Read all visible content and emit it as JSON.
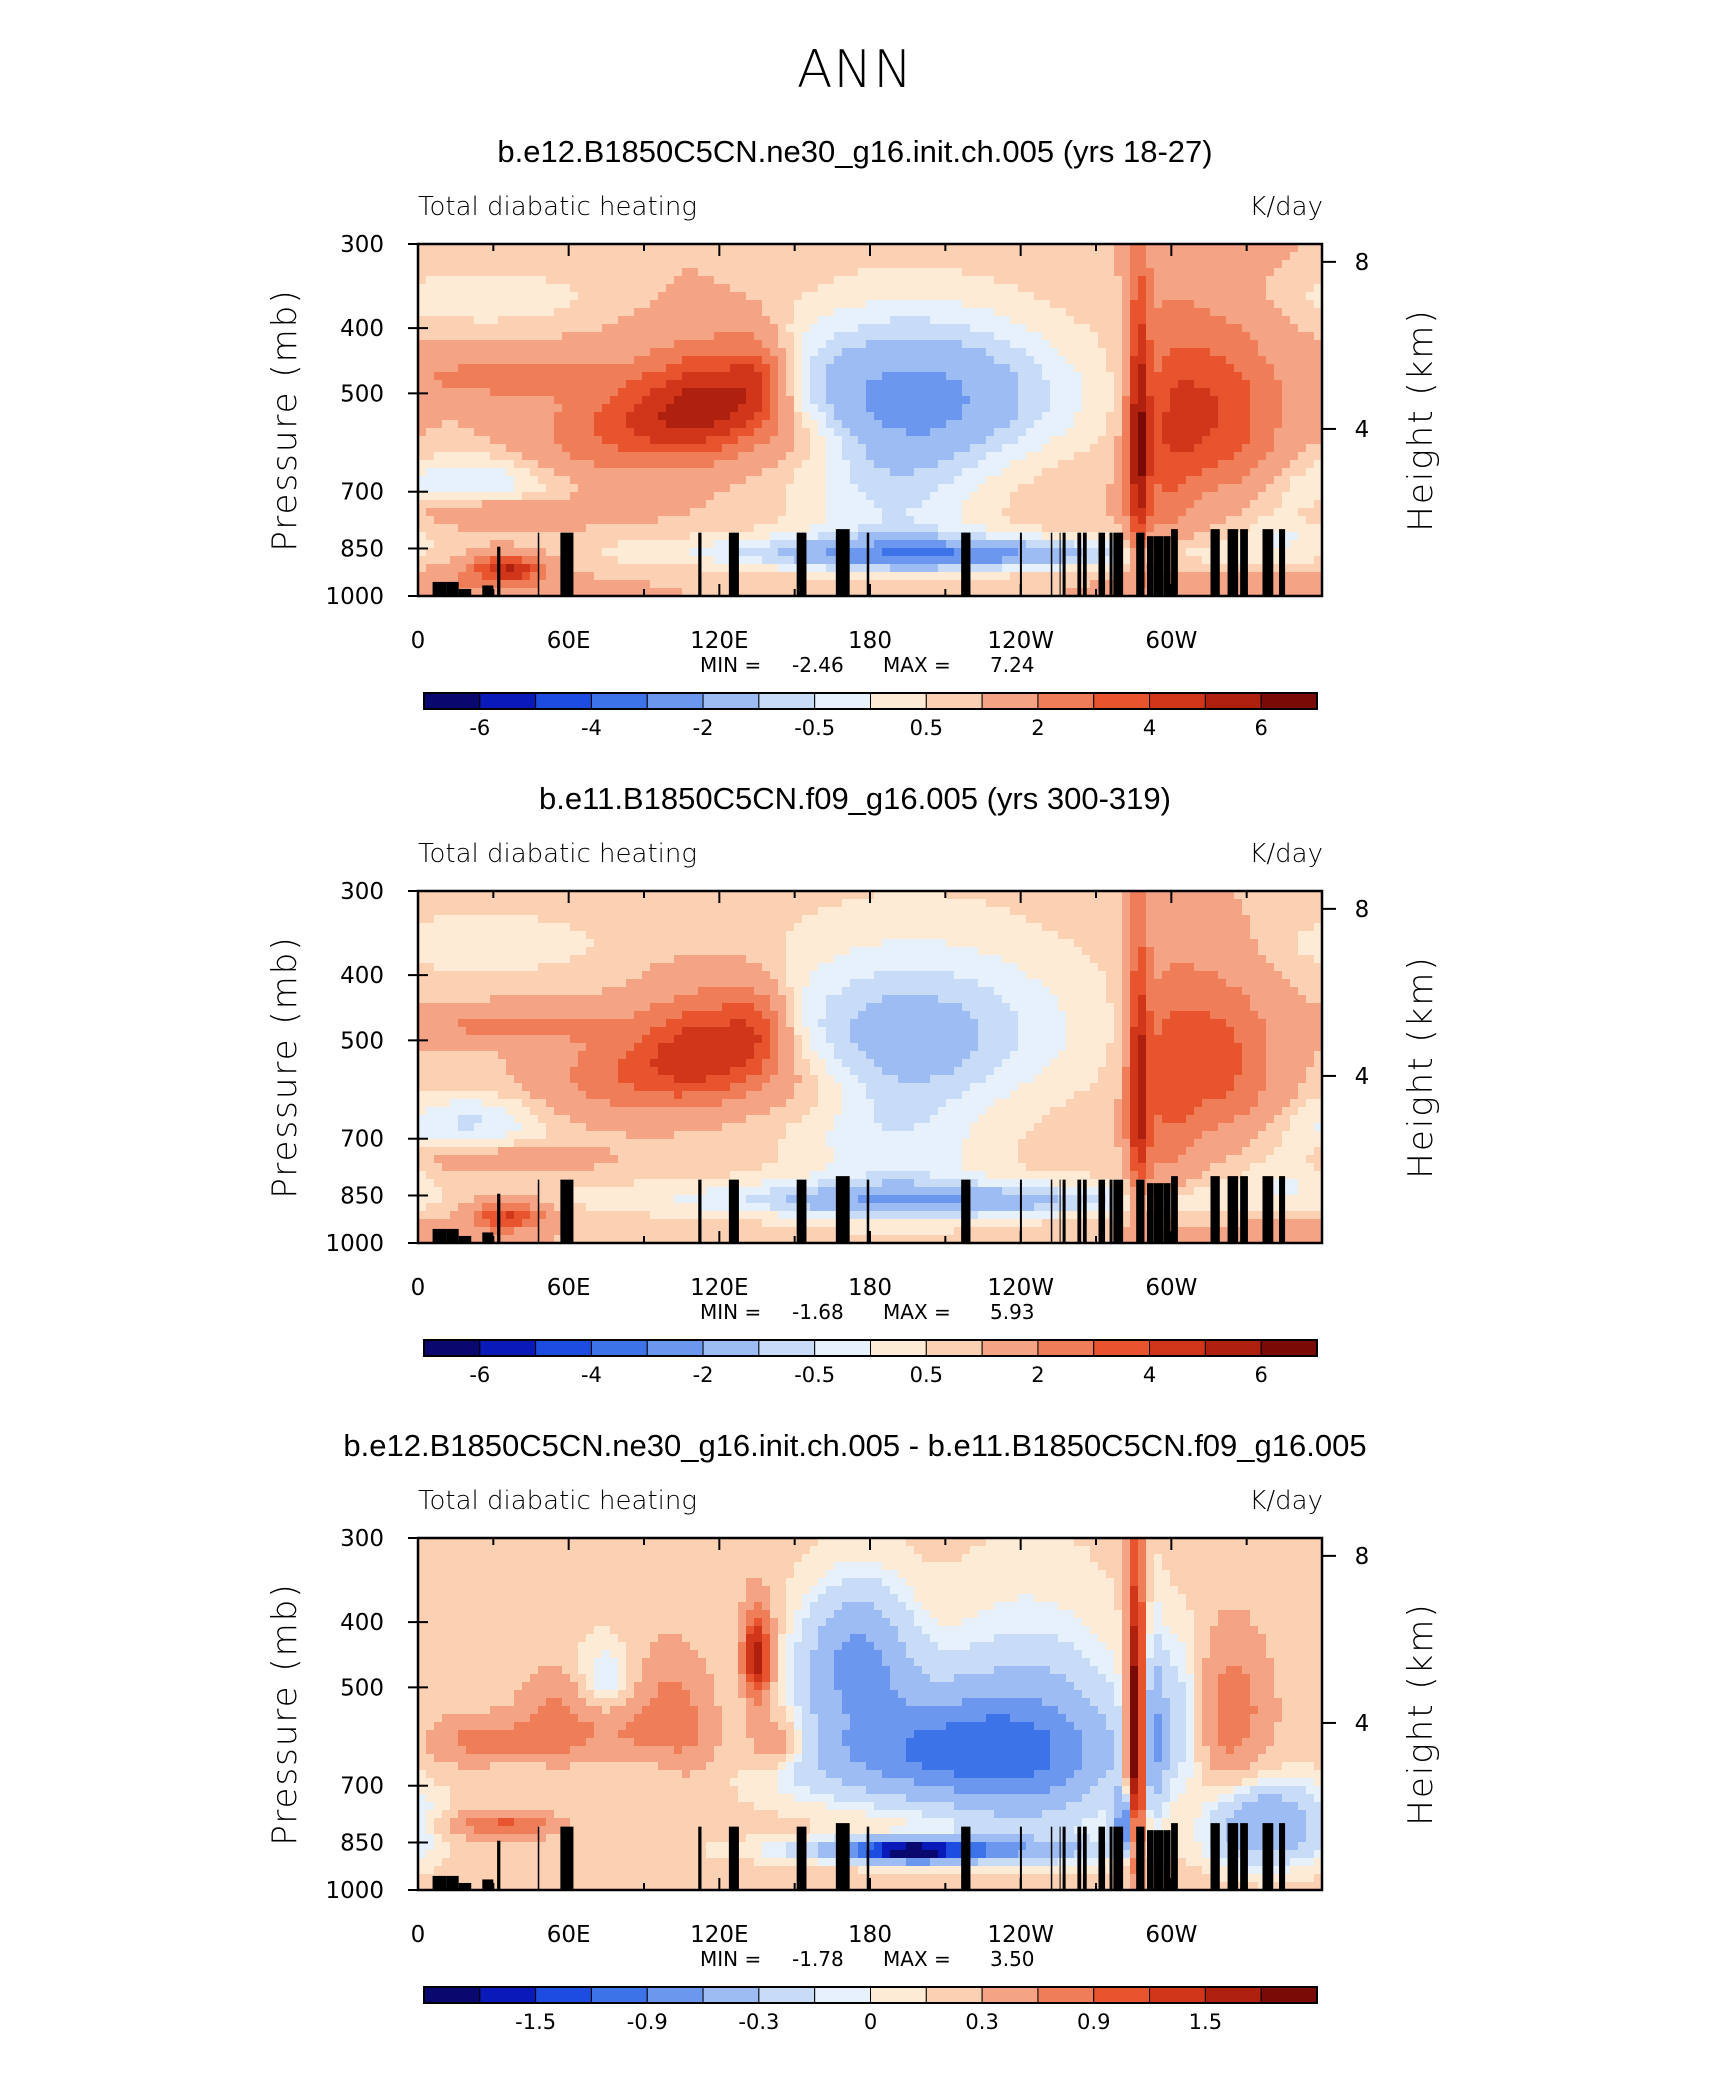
{
  "title": "ANN",
  "colors": {
    "levels": [
      "#08086e",
      "#0a1ab8",
      "#1d4ce0",
      "#3d73e8",
      "#6b98ee",
      "#9cbcf3",
      "#c8dcf8",
      "#e6f1fc",
      "#fdebd6",
      "#fbd0b3",
      "#f4a384",
      "#ef7d58",
      "#e8542d",
      "#d2361a",
      "#b0200f",
      "#7a0a06"
    ]
  },
  "chart_data": [
    {
      "type": "heatmap",
      "title": "b.e12.B1850C5CN.ne30_g16.init.ch.005 (yrs 18-27)",
      "left_label": "Total diabatic heating",
      "right_label": "K/day",
      "ylabel": "Pressure (mb)",
      "ylabel_right": "Height (km)",
      "x_ticks": [
        "0",
        "60E",
        "120E",
        "180",
        "120W",
        "60W"
      ],
      "y_ticks": [
        "300",
        "400",
        "500",
        "700",
        "850",
        "1000"
      ],
      "y_ticks_right": [
        "8",
        "4"
      ],
      "min_label": "MIN =",
      "min": "-2.46",
      "max_label": "MAX =",
      "max": "7.24",
      "colorbar_labels": [
        "-6",
        "-4",
        "-2",
        "-0.5",
        "0.5",
        "2",
        "4",
        "6"
      ],
      "contour_levels": [
        -6,
        -5,
        -4,
        -3,
        -2,
        -1,
        -0.5,
        0,
        0.5,
        1,
        2,
        3,
        4,
        5,
        6
      ],
      "field": {
        "base": 1.0,
        "blobs": [
          [
            23,
            675,
            45,
            22,
            -1.5
          ],
          [
            27,
            360,
            25,
            30,
            -1.0
          ],
          [
            34,
            475,
            20,
            25,
            1.8
          ],
          [
            36,
            910,
            30,
            10,
            4.0
          ],
          [
            30,
            750,
            25,
            30,
            1.0
          ],
          [
            62,
            620,
            40,
            20,
            0.5
          ],
          [
            90,
            550,
            60,
            25,
            2.5
          ],
          [
            107,
            520,
            70,
            15,
            2.0
          ],
          [
            125,
            500,
            60,
            14,
            2.5
          ],
          [
            136,
            480,
            50,
            8,
            2.0
          ],
          [
            151,
            580,
            50,
            20,
            1.0
          ],
          [
            200,
            500,
            90,
            45,
            -2.8
          ],
          [
            200,
            860,
            40,
            80,
            -1.8
          ],
          [
            210,
            872,
            25,
            40,
            -1.8
          ],
          [
            190,
            700,
            160,
            28,
            -1.5
          ],
          [
            287,
            600,
            200,
            3,
            4.5
          ],
          [
            298,
            600,
            160,
            9,
            2.0
          ],
          [
            312,
            520,
            100,
            14,
            2.0
          ],
          [
            327,
            560,
            110,
            15,
            1.5
          ],
          [
            345,
            780,
            80,
            15,
            -1.0
          ],
          [
            350,
            960,
            30,
            40,
            0.5
          ],
          [
            10,
            960,
            30,
            30,
            0.5
          ]
        ]
      },
      "topography": [
        [
          5.8,
          11.3,
          4
        ],
        [
          11.3,
          16.2,
          4
        ],
        [
          16.2,
          21.2,
          2
        ],
        [
          21.2,
          25.6,
          0
        ],
        [
          25.6,
          30.0,
          3
        ],
        [
          31.5,
          32.8,
          14
        ],
        [
          47.7,
          48.3,
          18
        ],
        [
          56.7,
          61.9,
          18
        ],
        [
          111.6,
          112.9,
          18
        ],
        [
          123.8,
          127.8,
          18
        ],
        [
          150.8,
          154.7,
          18
        ],
        [
          166.4,
          171.9,
          19
        ],
        [
          178.7,
          179.7,
          18
        ],
        [
          216.3,
          220.0,
          18
        ],
        [
          239.7,
          240.5,
          18
        ],
        [
          252.0,
          252.6,
          18
        ],
        [
          255.5,
          255.9,
          18
        ],
        [
          256.7,
          257.9,
          18
        ],
        [
          262.6,
          264.1,
          18
        ],
        [
          264.8,
          266.3,
          18
        ],
        [
          271.0,
          273.6,
          18
        ],
        [
          275.4,
          276.6,
          18
        ],
        [
          276.9,
          280.8,
          18
        ],
        [
          286.0,
          289.3,
          18
        ],
        [
          290.3,
          292.9,
          17
        ],
        [
          293.0,
          296.8,
          17
        ],
        [
          296.9,
          299.7,
          17
        ],
        [
          299.9,
          302.6,
          19
        ],
        [
          315.6,
          319.3,
          19
        ],
        [
          322.4,
          326.6,
          19
        ],
        [
          327.4,
          330.5,
          19
        ],
        [
          336.3,
          340.6,
          19
        ],
        [
          342.9,
          345.3,
          19
        ]
      ]
    },
    {
      "type": "heatmap",
      "title": "b.e11.B1850C5CN.f09_g16.005 (yrs 300-319)",
      "left_label": "Total diabatic heating",
      "right_label": "K/day",
      "ylabel": "Pressure (mb)",
      "ylabel_right": "Height (km)",
      "x_ticks": [
        "0",
        "60E",
        "120E",
        "180",
        "120W",
        "60W"
      ],
      "y_ticks": [
        "300",
        "400",
        "500",
        "700",
        "850",
        "1000"
      ],
      "y_ticks_right": [
        "8",
        "4"
      ],
      "min_label": "MIN =",
      "min": "-1.68",
      "max_label": "MAX =",
      "max": "5.93",
      "colorbar_labels": [
        "-6",
        "-4",
        "-2",
        "-0.5",
        "0.5",
        "2",
        "4",
        "6"
      ],
      "contour_levels": [
        -6,
        -5,
        -4,
        -3,
        -2,
        -1,
        -0.5,
        0,
        0.5,
        1,
        2,
        3,
        4,
        5,
        6
      ],
      "field": {
        "base": 0.8,
        "blobs": [
          [
            23,
            660,
            45,
            22,
            -1.4
          ],
          [
            27,
            360,
            25,
            30,
            -0.8
          ],
          [
            34,
            475,
            20,
            25,
            1.6
          ],
          [
            36,
            910,
            30,
            10,
            3.2
          ],
          [
            30,
            750,
            25,
            30,
            0.8
          ],
          [
            60,
            620,
            50,
            20,
            0.4
          ],
          [
            90,
            550,
            60,
            25,
            2.0
          ],
          [
            107,
            520,
            70,
            15,
            1.8
          ],
          [
            125,
            500,
            60,
            14,
            2.3
          ],
          [
            136,
            480,
            50,
            8,
            1.6
          ],
          [
            151,
            580,
            50,
            20,
            0.8
          ],
          [
            200,
            480,
            90,
            45,
            -1.8
          ],
          [
            200,
            860,
            40,
            80,
            -1.6
          ],
          [
            210,
            872,
            25,
            40,
            -1.0
          ],
          [
            190,
            700,
            160,
            28,
            -1.2
          ],
          [
            287,
            600,
            200,
            3,
            4.0
          ],
          [
            298,
            600,
            160,
            9,
            1.8
          ],
          [
            312,
            520,
            100,
            14,
            1.8
          ],
          [
            327,
            560,
            110,
            15,
            1.3
          ],
          [
            345,
            780,
            80,
            15,
            -0.8
          ],
          [
            350,
            960,
            30,
            40,
            0.4
          ],
          [
            10,
            960,
            30,
            30,
            0.4
          ]
        ]
      },
      "topography": [
        [
          5.8,
          11.3,
          4
        ],
        [
          11.3,
          16.2,
          4
        ],
        [
          16.2,
          21.2,
          2
        ],
        [
          21.2,
          25.6,
          0
        ],
        [
          25.6,
          30.0,
          3
        ],
        [
          31.5,
          32.8,
          14
        ],
        [
          47.7,
          48.3,
          18
        ],
        [
          56.7,
          61.9,
          18
        ],
        [
          111.6,
          112.9,
          18
        ],
        [
          123.8,
          127.8,
          18
        ],
        [
          150.8,
          154.7,
          18
        ],
        [
          166.4,
          171.9,
          19
        ],
        [
          178.7,
          179.7,
          18
        ],
        [
          216.3,
          220.0,
          18
        ],
        [
          239.7,
          240.5,
          18
        ],
        [
          252.0,
          252.6,
          18
        ],
        [
          255.5,
          255.9,
          18
        ],
        [
          256.7,
          257.9,
          18
        ],
        [
          262.6,
          264.1,
          18
        ],
        [
          264.8,
          266.3,
          18
        ],
        [
          271.0,
          273.6,
          18
        ],
        [
          275.4,
          276.6,
          18
        ],
        [
          276.9,
          280.8,
          18
        ],
        [
          286.0,
          289.3,
          18
        ],
        [
          290.3,
          292.9,
          17
        ],
        [
          293.0,
          296.8,
          17
        ],
        [
          296.9,
          299.7,
          17
        ],
        [
          299.9,
          302.6,
          19
        ],
        [
          315.6,
          319.3,
          19
        ],
        [
          322.4,
          326.6,
          19
        ],
        [
          327.4,
          330.5,
          19
        ],
        [
          336.3,
          340.6,
          19
        ],
        [
          342.9,
          345.3,
          19
        ]
      ]
    },
    {
      "type": "heatmap",
      "title": "b.e12.B1850C5CN.ne30_g16.init.ch.005 - b.e11.B1850C5CN.f09_g16.005",
      "left_label": "Total diabatic heating",
      "right_label": "K/day",
      "ylabel": "Pressure (mb)",
      "ylabel_right": "Height (km)",
      "x_ticks": [
        "0",
        "60E",
        "120E",
        "180",
        "120W",
        "60W"
      ],
      "y_ticks": [
        "300",
        "400",
        "500",
        "700",
        "850",
        "1000"
      ],
      "y_ticks_right": [
        "8",
        "4"
      ],
      "min_label": "MIN =",
      "min": "-1.78",
      "max_label": "MAX =",
      "max": "3.50",
      "colorbar_labels": [
        "-1.5",
        "-0.9",
        "-0.3",
        "0",
        "0.3",
        "0.9",
        "1.5"
      ],
      "contour_levels": [
        -1.8,
        -1.5,
        -1.2,
        -0.9,
        -0.6,
        -0.3,
        -0.1,
        0,
        0.1,
        0.3,
        0.6,
        0.9,
        1.2,
        1.5,
        1.8
      ],
      "field": {
        "base": 0.15,
        "blobs": [
          [
            20,
            600,
            40,
            12,
            0.4
          ],
          [
            34,
            800,
            25,
            15,
            0.8
          ],
          [
            40,
            600,
            25,
            15,
            0.4
          ],
          [
            58,
            550,
            60,
            12,
            0.6
          ],
          [
            72,
            500,
            50,
            10,
            -0.4
          ],
          [
            90,
            580,
            40,
            15,
            0.5
          ],
          [
            100,
            500,
            60,
            10,
            0.4
          ],
          [
            110,
            600,
            70,
            10,
            0.3
          ],
          [
            135,
            450,
            50,
            4,
            1.6
          ],
          [
            142,
            600,
            40,
            8,
            0.6
          ],
          [
            175,
            450,
            70,
            15,
            -0.8
          ],
          [
            205,
            620,
            80,
            40,
            -1.0
          ],
          [
            210,
            872,
            25,
            40,
            -0.9
          ],
          [
            196,
            875,
            22,
            15,
            -1.5
          ],
          [
            244,
            620,
            150,
            25,
            -0.6
          ],
          [
            286,
            600,
            200,
            2.5,
            2.5
          ],
          [
            282,
            800,
            60,
            3,
            -1.2
          ],
          [
            292,
            600,
            120,
            4,
            -0.7
          ],
          [
            306,
            550,
            100,
            8,
            -0.5
          ],
          [
            322,
            550,
            100,
            12,
            0.7
          ],
          [
            330,
            800,
            80,
            12,
            -0.4
          ],
          [
            345,
            800,
            80,
            15,
            -0.5
          ]
        ]
      },
      "topography": [
        [
          5.8,
          11.3,
          4
        ],
        [
          11.3,
          16.2,
          4
        ],
        [
          16.2,
          21.2,
          2
        ],
        [
          21.2,
          25.6,
          0
        ],
        [
          25.6,
          30.0,
          3
        ],
        [
          31.5,
          32.8,
          14
        ],
        [
          47.7,
          48.3,
          18
        ],
        [
          56.7,
          61.9,
          18
        ],
        [
          111.6,
          112.9,
          18
        ],
        [
          123.8,
          127.8,
          18
        ],
        [
          150.8,
          154.7,
          18
        ],
        [
          166.4,
          171.9,
          19
        ],
        [
          178.7,
          179.7,
          18
        ],
        [
          216.3,
          220.0,
          18
        ],
        [
          239.7,
          240.5,
          18
        ],
        [
          252.0,
          252.6,
          18
        ],
        [
          255.5,
          255.9,
          18
        ],
        [
          256.7,
          257.9,
          18
        ],
        [
          262.6,
          264.1,
          18
        ],
        [
          264.8,
          266.3,
          18
        ],
        [
          271.0,
          273.6,
          18
        ],
        [
          275.4,
          276.6,
          18
        ],
        [
          276.9,
          280.8,
          18
        ],
        [
          286.0,
          289.3,
          18
        ],
        [
          290.3,
          292.9,
          17
        ],
        [
          293.0,
          296.8,
          17
        ],
        [
          296.9,
          299.7,
          17
        ],
        [
          299.9,
          302.6,
          19
        ],
        [
          315.6,
          319.3,
          19
        ],
        [
          322.4,
          326.6,
          19
        ],
        [
          327.4,
          330.5,
          19
        ],
        [
          336.3,
          340.6,
          19
        ],
        [
          342.9,
          345.3,
          19
        ]
      ]
    }
  ]
}
